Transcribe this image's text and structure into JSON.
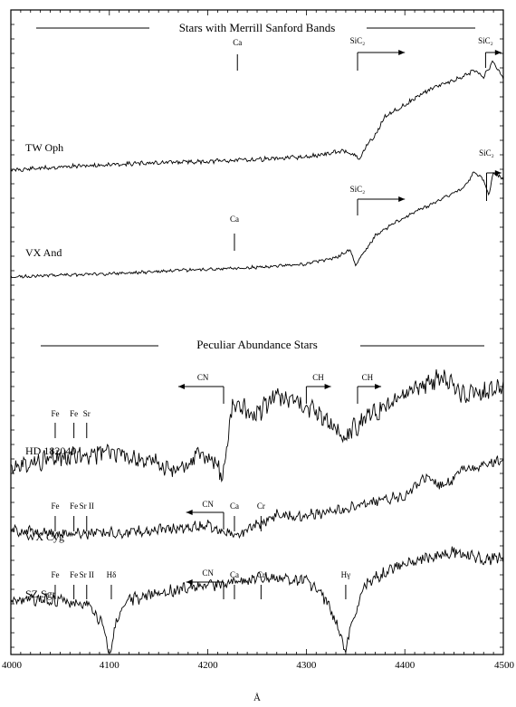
{
  "chart_data": {
    "type": "line",
    "xlim": [
      4000,
      4500
    ],
    "x_ticks": [
      4000,
      4100,
      4200,
      4300,
      4400,
      4500
    ],
    "xlabel": "Å",
    "sections": [
      {
        "title": "Stars with Merrill Sanford Bands"
      },
      {
        "title": "Peculiar Abundance Stars"
      }
    ],
    "series": [
      {
        "name": "TW Oph",
        "x": [
          4000,
          4050,
          4100,
          4150,
          4200,
          4250,
          4300,
          4340,
          4355,
          4360,
          4370,
          4380,
          4400,
          4420,
          4440,
          4460,
          4470,
          4480,
          4490,
          4500
        ],
        "y": [
          0.0,
          0.03,
          0.05,
          0.07,
          0.08,
          0.1,
          0.12,
          0.18,
          0.1,
          0.22,
          0.32,
          0.5,
          0.6,
          0.72,
          0.8,
          0.86,
          0.92,
          0.86,
          1.0,
          0.85
        ]
      },
      {
        "name": "VX And",
        "x": [
          4000,
          4050,
          4100,
          4150,
          4200,
          4250,
          4300,
          4330,
          4345,
          4350,
          4355,
          4370,
          4390,
          4410,
          4430,
          4450,
          4460,
          4470,
          4480,
          4485,
          4490,
          4500
        ],
        "y": [
          0.0,
          0.02,
          0.03,
          0.05,
          0.07,
          0.09,
          0.12,
          0.18,
          0.25,
          0.1,
          0.18,
          0.38,
          0.5,
          0.6,
          0.68,
          0.78,
          0.82,
          0.96,
          0.9,
          0.75,
          0.96,
          0.9
        ]
      },
      {
        "name": "HD 182040",
        "x": [
          4000,
          4050,
          4100,
          4150,
          4170,
          4190,
          4210,
          4215,
          4225,
          4250,
          4270,
          4300,
          4320,
          4340,
          4360,
          4380,
          4400,
          4420,
          4440,
          4460,
          4480,
          4500
        ],
        "y": [
          0.22,
          0.27,
          0.32,
          0.22,
          0.15,
          0.3,
          0.22,
          0.1,
          0.72,
          0.65,
          0.8,
          0.7,
          0.6,
          0.45,
          0.62,
          0.7,
          0.82,
          0.9,
          0.95,
          0.8,
          0.82,
          0.88
        ]
      },
      {
        "name": "WX Cyg",
        "x": [
          4000,
          4050,
          4100,
          4150,
          4200,
          4230,
          4250,
          4270,
          4300,
          4350,
          4400,
          4420,
          4440,
          4460,
          4480,
          4500
        ],
        "y": [
          0.25,
          0.22,
          0.22,
          0.25,
          0.3,
          0.18,
          0.3,
          0.42,
          0.4,
          0.5,
          0.62,
          0.8,
          0.7,
          0.9,
          0.92,
          1.0
        ]
      },
      {
        "name": "SZ Sgr",
        "x": [
          4000,
          4050,
          4080,
          4095,
          4100,
          4105,
          4120,
          4150,
          4200,
          4250,
          4300,
          4320,
          4335,
          4340,
          4345,
          4360,
          4400,
          4450,
          4480,
          4500
        ],
        "y": [
          0.55,
          0.55,
          0.5,
          0.3,
          0.0,
          0.3,
          0.55,
          0.62,
          0.68,
          0.75,
          0.74,
          0.55,
          0.25,
          0.05,
          0.3,
          0.7,
          0.9,
          1.0,
          0.92,
          0.95
        ]
      }
    ],
    "annotations": [
      {
        "text": "Ca",
        "x": 4230,
        "star": "TW Oph"
      },
      {
        "text": "SiC₂",
        "x": 4352,
        "star": "TW Oph"
      },
      {
        "text": "SiC₂",
        "x": 4482,
        "star": "TW Oph"
      },
      {
        "text": "Ca",
        "x": 4227,
        "star": "VX And"
      },
      {
        "text": "SiC₂",
        "x": 4352,
        "star": "VX And"
      },
      {
        "text": "SiC₂",
        "x": 4483,
        "star": "VX And"
      },
      {
        "text": "Fe",
        "x": 4045,
        "star": "HD 182040"
      },
      {
        "text": "Fe",
        "x": 4064,
        "star": "HD 182040"
      },
      {
        "text": "Sr",
        "x": 4077,
        "star": "HD 182040"
      },
      {
        "text": "CN",
        "x": 4216,
        "star": "HD 182040"
      },
      {
        "text": "CH",
        "x": 4300,
        "star": "HD 182040"
      },
      {
        "text": "CH",
        "x": 4352,
        "star": "HD 182040"
      },
      {
        "text": "Fe",
        "x": 4045,
        "star": "WX Cyg"
      },
      {
        "text": "Fe",
        "x": 4064,
        "star": "WX Cyg"
      },
      {
        "text": "Sr II",
        "x": 4077,
        "star": "WX Cyg"
      },
      {
        "text": "CN",
        "x": 4216,
        "star": "WX Cyg"
      },
      {
        "text": "Ca",
        "x": 4227,
        "star": "WX Cyg"
      },
      {
        "text": "Cr",
        "x": 4254,
        "star": "WX Cyg"
      },
      {
        "text": "Fe",
        "x": 4045,
        "star": "SZ Sgr"
      },
      {
        "text": "Fe",
        "x": 4064,
        "star": "SZ Sgr"
      },
      {
        "text": "Sr II",
        "x": 4077,
        "star": "SZ Sgr"
      },
      {
        "text": "Hδ",
        "x": 4102,
        "star": "SZ Sgr"
      },
      {
        "text": "CN",
        "x": 4216,
        "star": "SZ Sgr"
      },
      {
        "text": "Ca",
        "x": 4227,
        "star": "SZ Sgr"
      },
      {
        "text": "Cr",
        "x": 4254,
        "star": "SZ Sgr"
      },
      {
        "text": "Hγ",
        "x": 4340,
        "star": "SZ Sgr"
      }
    ],
    "grid": false
  }
}
